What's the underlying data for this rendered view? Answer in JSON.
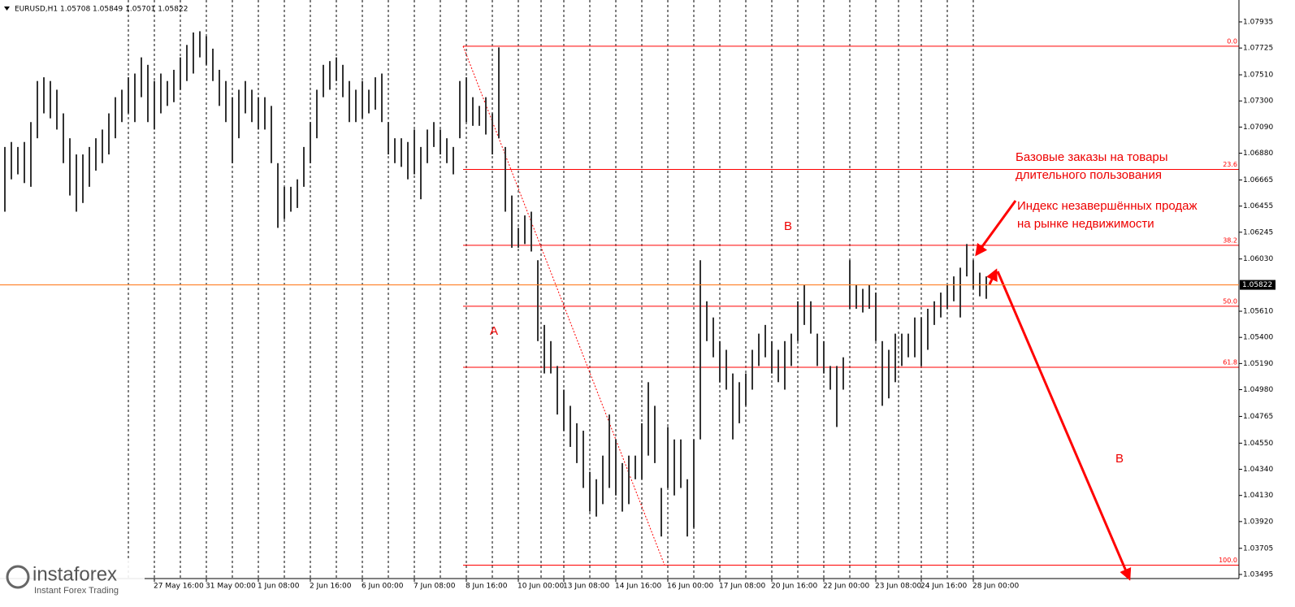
{
  "chart_data": {
    "type": "ohlc",
    "title": "EURUSD,H1  1.05708 1.05849 1.05701 1.05822",
    "color": "#333333",
    "grid": true,
    "last_price": 1.05822,
    "last_price_color": "#ff7f27",
    "fib_color": "#ff0000",
    "categories": [
      null,
      null,
      null,
      null,
      null,
      null,
      null,
      null,
      null,
      null,
      null,
      null,
      null,
      null,
      null,
      null,
      null,
      null,
      null,
      null,
      null,
      null,
      null,
      "27 May 16:00",
      null,
      null,
      null,
      null,
      null,
      null,
      null,
      "31 May 00:00",
      null,
      null,
      null,
      null,
      null,
      null,
      null,
      "1 Jun 08:00",
      null,
      null,
      null,
      null,
      null,
      null,
      null,
      "2 Jun 16:00",
      null,
      null,
      null,
      null,
      null,
      null,
      null,
      "6 Jun 00:00",
      null,
      null,
      null,
      null,
      null,
      null,
      null,
      "7 Jun 08:00",
      null,
      null,
      null,
      null,
      null,
      null,
      null,
      "8 Jun 16:00",
      null,
      null,
      null,
      null,
      null,
      null,
      null,
      "10 Jun 00:00",
      null,
      null,
      null,
      null,
      null,
      null,
      "13 Jun 08:00",
      null,
      null,
      null,
      null,
      null,
      null,
      null,
      "14 Jun 16:00",
      null,
      null,
      null,
      null,
      null,
      null,
      null,
      "16 Jun 00:00",
      null,
      null,
      null,
      null,
      null,
      null,
      null,
      "17 Jun 08:00",
      null,
      null,
      null,
      null,
      null,
      null,
      null,
      "20 Jun 16:00",
      null,
      null,
      null,
      null,
      null,
      null,
      null,
      "22 Jun 00:00",
      null,
      null,
      null,
      null,
      null,
      null,
      null,
      "23 Jun 08:00",
      null,
      null,
      null,
      null,
      null,
      null,
      "24 Jun 16:00",
      null,
      null,
      null,
      null,
      null,
      null,
      null,
      "28 Jun 00:00",
      null,
      null
    ],
    "high": [
      1.0693,
      1.0697,
      1.0693,
      1.0697,
      1.0713,
      1.0746,
      1.0749,
      1.0746,
      1.0739,
      1.072,
      1.07,
      1.0687,
      1.0687,
      1.0693,
      1.07,
      1.0707,
      1.072,
      1.0733,
      1.0739,
      1.0749,
      1.0752,
      1.0765,
      1.0759,
      1.0746,
      1.0752,
      1.0746,
      1.0755,
      1.0765,
      1.0775,
      1.0785,
      1.0786,
      1.0782,
      1.0772,
      1.0755,
      1.0746,
      1.0733,
      1.0739,
      1.0746,
      1.0739,
      1.0733,
      1.0733,
      1.0726,
      1.068,
      1.0661,
      1.0661,
      1.0667,
      1.0693,
      1.0713,
      1.0739,
      1.0759,
      1.0762,
      1.0765,
      1.0759,
      1.0746,
      1.0739,
      1.0746,
      1.0739,
      1.0749,
      1.0752,
      1.0713,
      1.07,
      1.07,
      1.0697,
      1.0707,
      1.0693,
      1.0707,
      1.0713,
      1.0707,
      1.07,
      1.0693,
      1.0746,
      1.0749,
      1.0733,
      1.0726,
      1.0733,
      1.072,
      1.0773,
      1.0693,
      1.0654,
      1.0628,
      1.0638,
      1.0641,
      1.0602,
      1.055,
      1.0537,
      1.0517,
      1.0498,
      1.0485,
      1.0471,
      1.0465,
      1.0432,
      1.0426,
      1.0445,
      1.0478,
      1.0458,
      1.0439,
      1.0445,
      1.0445,
      1.0471,
      1.0504,
      1.0485,
      1.0419,
      1.0468,
      1.0458,
      1.0458,
      1.0426,
      1.0458,
      1.0602,
      1.0569,
      1.0556,
      1.0537,
      1.053,
      1.0511,
      1.0504,
      1.0511,
      1.053,
      1.0543,
      1.055,
      1.0537,
      1.053,
      1.0537,
      1.0543,
      1.0569,
      1.0582,
      1.0569,
      1.0543,
      1.0537,
      1.0517,
      1.0517,
      1.0524,
      1.0602,
      1.0582,
      1.0579,
      1.0582,
      1.0576,
      1.0537,
      1.053,
      1.0543,
      1.0543,
      1.0543,
      1.0556,
      1.0556,
      1.0563,
      1.0569,
      1.0576,
      1.0582,
      1.0589,
      1.0596,
      1.0615,
      1.0602,
      1.0592,
      1.0589
    ],
    "low": [
      1.0641,
      1.0667,
      1.0671,
      1.0664,
      1.0661,
      1.07,
      1.072,
      1.0716,
      1.0707,
      1.068,
      1.0654,
      1.0641,
      1.0648,
      1.0661,
      1.0674,
      1.068,
      1.0687,
      1.07,
      1.0713,
      1.072,
      1.0713,
      1.0733,
      1.0713,
      1.0707,
      1.072,
      1.0726,
      1.0729,
      1.0739,
      1.0746,
      1.0752,
      1.0765,
      1.0759,
      1.0746,
      1.0726,
      1.0713,
      1.068,
      1.07,
      1.072,
      1.0713,
      1.0707,
      1.0707,
      1.068,
      1.0628,
      1.0635,
      1.0641,
      1.0644,
      1.0661,
      1.068,
      1.07,
      1.0733,
      1.0739,
      1.0746,
      1.0733,
      1.0713,
      1.0713,
      1.0716,
      1.072,
      1.0723,
      1.0713,
      1.0687,
      1.068,
      1.0677,
      1.0667,
      1.0671,
      1.0651,
      1.068,
      1.0693,
      1.0687,
      1.068,
      1.0671,
      1.07,
      1.0713,
      1.071,
      1.071,
      1.0703,
      1.0687,
      1.07,
      1.0641,
      1.0612,
      1.0612,
      1.0615,
      1.0609,
      1.0537,
      1.0511,
      1.0511,
      1.0478,
      1.0465,
      1.0452,
      1.0439,
      1.0419,
      1.04,
      1.0396,
      1.0406,
      1.0419,
      1.0413,
      1.04,
      1.0406,
      1.0426,
      1.0426,
      1.0445,
      1.0439,
      1.038,
      1.0419,
      1.0413,
      1.0419,
      1.038,
      1.0387,
      1.0458,
      1.0537,
      1.0524,
      1.0504,
      1.0498,
      1.0458,
      1.0471,
      1.0485,
      1.0498,
      1.0517,
      1.0524,
      1.0511,
      1.0504,
      1.0498,
      1.0517,
      1.0537,
      1.055,
      1.0543,
      1.0517,
      1.0511,
      1.0498,
      1.0468,
      1.0498,
      1.0563,
      1.0563,
      1.056,
      1.0563,
      1.0537,
      1.0485,
      1.0491,
      1.0504,
      1.0517,
      1.0524,
      1.0524,
      1.0517,
      1.053,
      1.055,
      1.0556,
      1.0563,
      1.0569,
      1.0556,
      1.0589,
      1.0579,
      1.0573,
      1.0571
    ],
    "ylim": [
      1.03462,
      1.08111
    ],
    "yticks": [
      1.07935,
      1.07725,
      {
        "value": 1.0751,
        "label": "1.07510"
      },
      {
        "value": 1.073,
        "label": "1.07300"
      },
      {
        "value": 1.0709,
        "label": "1.07090"
      },
      {
        "value": 1.0688,
        "label": "1.06880"
      },
      1.06665,
      1.06455,
      1.06245,
      {
        "value": 1.0603,
        "label": "1.06030"
      },
      {
        "value": 1.0561,
        "label": "1.05610"
      },
      {
        "value": 1.054,
        "label": "1.05400"
      },
      {
        "value": 1.0519,
        "label": "1.05190"
      },
      {
        "value": 1.0498,
        "label": "1.04980"
      },
      1.04765,
      {
        "value": 1.0455,
        "label": "1.04550"
      },
      {
        "value": 1.0434,
        "label": "1.04340"
      },
      {
        "value": 1.0413,
        "label": "1.04130"
      },
      {
        "value": 1.0392,
        "label": "1.03920"
      },
      1.03705,
      1.03495
    ],
    "fib_levels": [
      {
        "label": "0.0",
        "price": 1.0774
      },
      {
        "label": "23.6",
        "price": 1.0675
      },
      {
        "label": "38.2",
        "price": 1.0614
      },
      {
        "label": "50.0",
        "price": 1.0565
      },
      {
        "label": "61.8",
        "price": 1.0516
      },
      {
        "label": "100.0",
        "price": 1.0357
      }
    ],
    "wave_labels": [
      "A",
      "B",
      "B"
    ],
    "notes": [
      [
        "Базовые заказы на товары",
        "длительного пользования"
      ],
      [
        "Индекс незавершённых продаж",
        "на рынке недвижимости"
      ]
    ]
  },
  "logo": {
    "brand": "instaforex",
    "tagline": "Instant Forex Trading"
  }
}
